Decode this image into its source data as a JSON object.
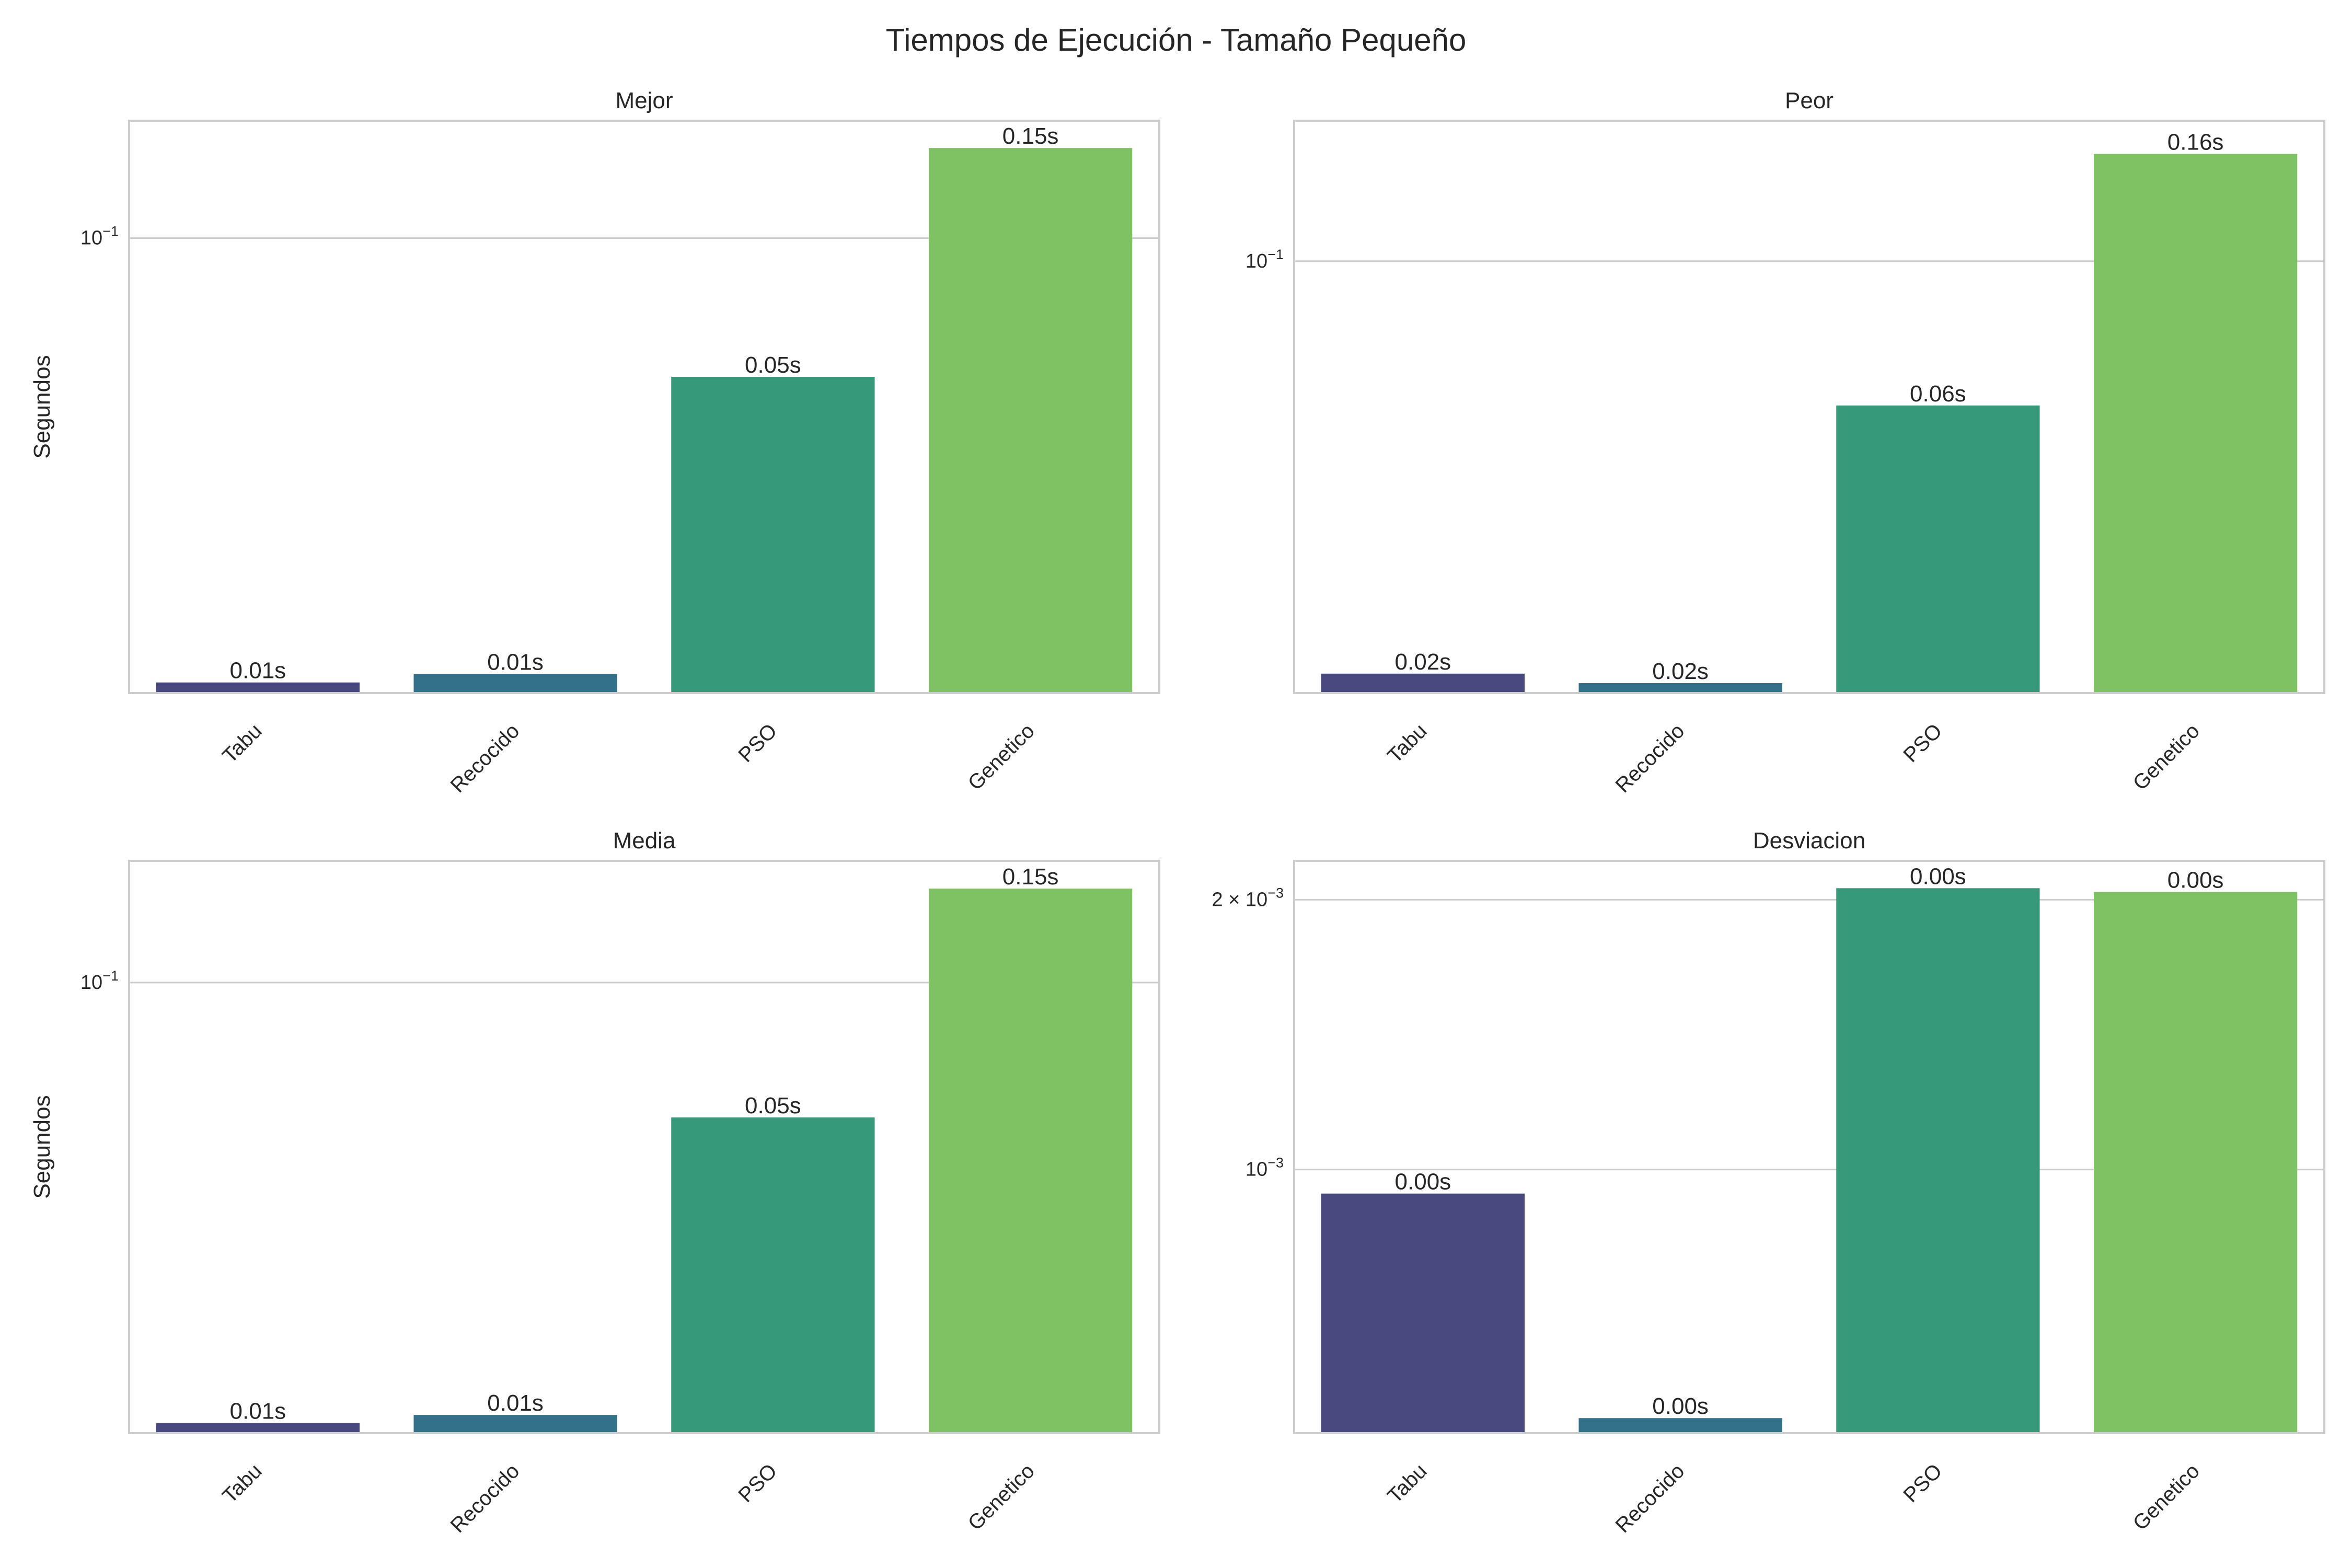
{
  "figure": {
    "suptitle": "Tiempos de Ejecución - Tamaño Pequeño"
  },
  "chart_data": [
    {
      "type": "bar",
      "title": "Mejor",
      "ylabel": "Segundos",
      "xlabel": "",
      "yscale": "log",
      "categories": [
        "Tabu",
        "Recocido",
        "PSO",
        "Genetico"
      ],
      "values": [
        0.0123,
        0.0128,
        0.052,
        0.153
      ],
      "bar_labels": [
        "0.01s",
        "0.01s",
        "0.05s",
        "0.15s"
      ],
      "ylim": [
        0.0117,
        0.174
      ],
      "yticks": [
        {
          "value": 0.1,
          "base": "10",
          "exp": "−1"
        }
      ],
      "grid": true,
      "colors": [
        "#48497e",
        "#33708a",
        "#35997a",
        "#7fc264"
      ]
    },
    {
      "type": "bar",
      "title": "Peor",
      "ylabel": "",
      "xlabel": "",
      "yscale": "log",
      "categories": [
        "Tabu",
        "Recocido",
        "PSO",
        "Genetico"
      ],
      "values": [
        0.0181,
        0.0174,
        0.055,
        0.156
      ],
      "bar_labels": [
        "0.02s",
        "0.02s",
        "0.06s",
        "0.16s"
      ],
      "ylim": [
        0.0167,
        0.179
      ],
      "yticks": [
        {
          "value": 0.1,
          "base": "10",
          "exp": "−1"
        }
      ],
      "grid": true,
      "colors": [
        "#48497e",
        "#33708a",
        "#35997a",
        "#7fc264"
      ]
    },
    {
      "type": "bar",
      "title": "Media",
      "ylabel": "Segundos",
      "xlabel": "",
      "yscale": "log",
      "categories": [
        "Tabu",
        "Recocido",
        "PSO",
        "Genetico"
      ],
      "values": [
        0.0132,
        0.0137,
        0.0538,
        0.154
      ],
      "bar_labels": [
        "0.01s",
        "0.01s",
        "0.05s",
        "0.15s"
      ],
      "ylim": [
        0.0126,
        0.175
      ],
      "yticks": [
        {
          "value": 0.1,
          "base": "10",
          "exp": "−1"
        }
      ],
      "grid": true,
      "colors": [
        "#48497e",
        "#33708a",
        "#35997a",
        "#7fc264"
      ]
    },
    {
      "type": "bar",
      "title": "Desviacion",
      "ylabel": "",
      "xlabel": "",
      "yscale": "log",
      "categories": [
        "Tabu",
        "Recocido",
        "PSO",
        "Genetico"
      ],
      "values": [
        0.00094,
        0.000528,
        0.00206,
        0.00204
      ],
      "bar_labels": [
        "0.00s",
        "0.00s",
        "0.00s",
        "0.00s"
      ],
      "ylim": [
        0.000508,
        0.00221
      ],
      "yticks": [
        {
          "value": 0.001,
          "base": "10",
          "exp": "−3"
        },
        {
          "value": 0.002,
          "base": "2 × 10",
          "exp": "−3"
        }
      ],
      "grid": true,
      "colors": [
        "#48497e",
        "#33708a",
        "#35997a",
        "#7fc264"
      ]
    }
  ]
}
